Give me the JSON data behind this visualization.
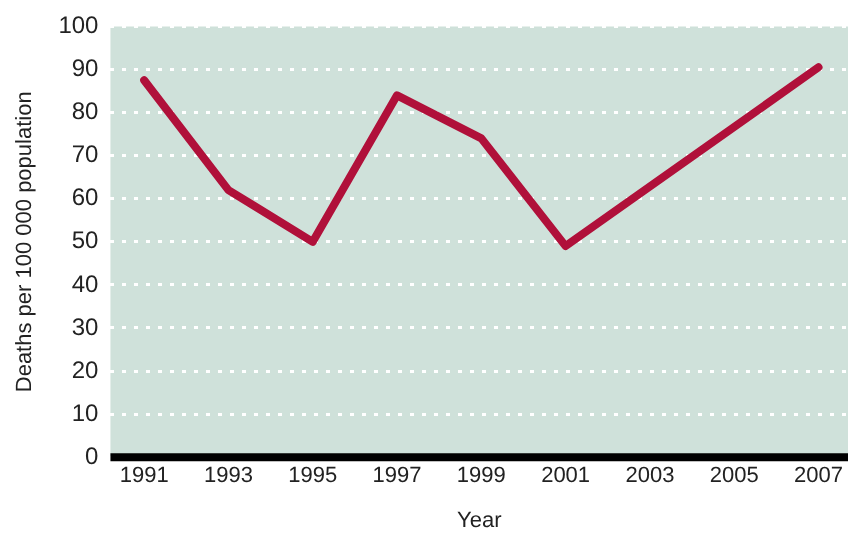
{
  "chart_data": {
    "type": "line",
    "xlabel": "Year",
    "ylabel": "Deaths per 100 000 population",
    "x": [
      1991,
      1993,
      1995,
      1997,
      1999,
      2001,
      2007
    ],
    "series": [
      {
        "color": "#b0103a",
        "values": [
          87.5,
          62,
          50,
          84,
          74,
          49,
          90.5
        ]
      }
    ],
    "xlim": [
      1990.2,
      2007.7
    ],
    "xticks": [
      1991,
      1993,
      1995,
      1997,
      1999,
      2001,
      2003,
      2005,
      2007
    ],
    "ylim": [
      0,
      100
    ],
    "yticks": [
      0,
      10,
      20,
      30,
      40,
      50,
      60,
      70,
      80,
      90,
      100
    ],
    "grid": "y",
    "legend": false,
    "marker": "none",
    "line_style": "solid"
  }
}
